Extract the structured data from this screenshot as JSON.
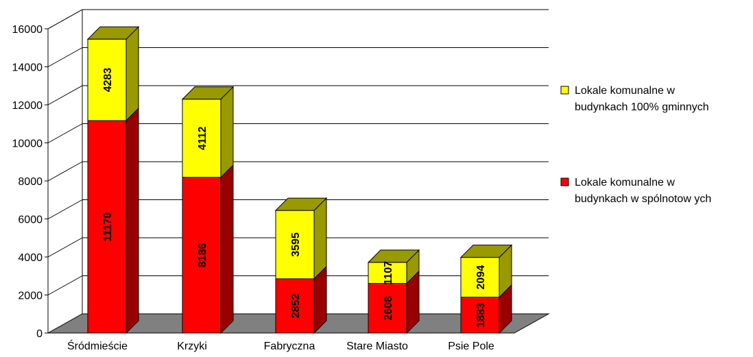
{
  "chart_data": {
    "type": "bar",
    "stacked": true,
    "style": "3d",
    "categories": [
      "Śródmieście",
      "Krzyki",
      "Fabryczna",
      "Stare Miasto",
      "Psie Pole"
    ],
    "series": [
      {
        "name": "Lokale komunalne w budynkach w spólnotow ych",
        "legend_lines": [
          "Lokale komunalne w",
          "budynkach w spólnotow ych"
        ],
        "values": [
          11170,
          8186,
          2852,
          2608,
          1883
        ],
        "color": "#ff0000",
        "side_color": "#990000",
        "top_color": "#ff3333"
      },
      {
        "name": "Lokale komunalne w budynkach 100% gminnych",
        "legend_lines": [
          "Lokale komunalne w",
          "budynkach 100% gminnych"
        ],
        "values": [
          4283,
          4112,
          3595,
          1107,
          2094
        ],
        "color": "#ffff00",
        "side_color": "#999900",
        "top_color": "#999900"
      }
    ],
    "ylim": [
      0,
      16000
    ],
    "yticks": [
      0,
      2000,
      4000,
      6000,
      8000,
      10000,
      12000,
      14000,
      16000
    ],
    "ytick_labels": [
      "0",
      "2000",
      "4000",
      "6000",
      "8000",
      "10000",
      "12000",
      "14000",
      "16000"
    ],
    "grid": true,
    "legend_position": "right",
    "floor_color": "#808080",
    "title": "",
    "xlabel": "",
    "ylabel": ""
  }
}
